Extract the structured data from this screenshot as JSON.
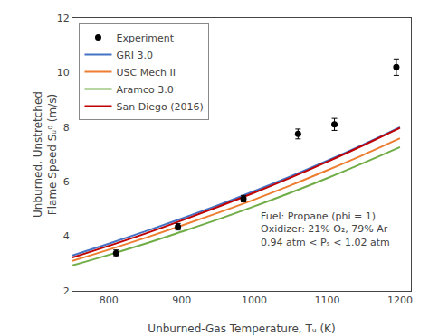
{
  "chart_data": {
    "type": "line",
    "xlabel": "Unburned-Gas Temperature, Tᵤ (K)",
    "ylabel": "Unburned, Unstretched\nFlame Speed Sᵤ⁰ (m/s)",
    "annotation": "Fuel: Propane (phi = 1)\nOxidizer: 21% O₂, 79% Ar\n0.94 atm < Pₛ < 1.02 atm",
    "x": [
      750,
      800,
      850,
      900,
      950,
      1000,
      1050,
      1100,
      1150,
      1200
    ],
    "series": [
      {
        "name": "Experiment",
        "type": "scatter",
        "marker": "circle",
        "color": "#000000",
        "x": [
          810,
          895,
          985,
          1060,
          1110,
          1195
        ],
        "values": [
          3.38,
          4.35,
          5.38,
          7.75,
          8.1,
          10.2
        ],
        "errors": [
          0.12,
          0.12,
          0.12,
          0.18,
          0.22,
          0.3
        ]
      },
      {
        "name": "GRI 3.0",
        "color": "#4472c4",
        "values": [
          3.3,
          3.73,
          4.18,
          4.65,
          5.14,
          5.66,
          6.2,
          6.77,
          7.37,
          8.0
        ]
      },
      {
        "name": "USC Mech II",
        "color": "#ed7d31",
        "values": [
          3.1,
          3.51,
          3.94,
          4.39,
          4.86,
          5.35,
          5.87,
          6.42,
          6.99,
          7.59
        ]
      },
      {
        "name": "Aramco 3.0",
        "color": "#70ad47",
        "values": [
          2.93,
          3.32,
          3.73,
          4.17,
          4.62,
          5.1,
          5.6,
          6.13,
          6.69,
          7.27
        ]
      },
      {
        "name": "San Diego (2016)",
        "color": "#c00000",
        "values": [
          3.22,
          3.65,
          4.1,
          4.58,
          5.08,
          5.6,
          6.15,
          6.73,
          7.34,
          7.97
        ]
      }
    ],
    "xlim": [
      750,
      1215
    ],
    "ylim": [
      2,
      12
    ],
    "xticks": [
      800,
      900,
      1000,
      1100,
      1200
    ],
    "yticks": [
      2,
      4,
      6,
      8,
      10,
      12
    ],
    "legend": "upper left",
    "grid": false
  }
}
